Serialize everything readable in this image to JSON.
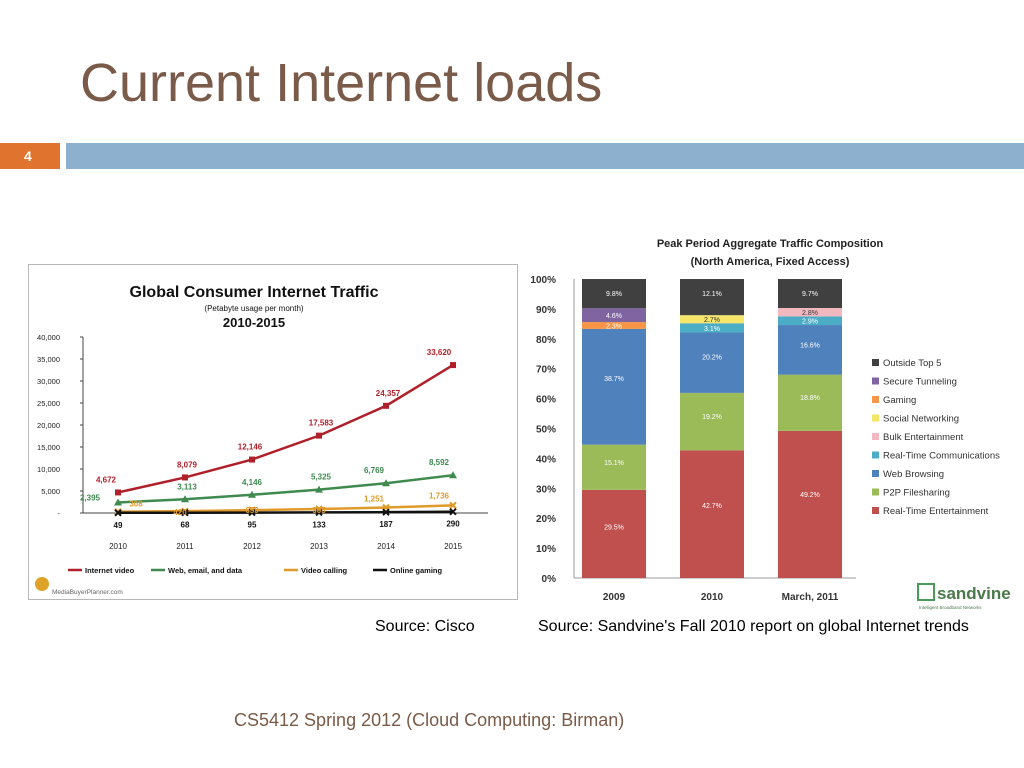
{
  "slide": {
    "title": "Current Internet loads",
    "number": "4",
    "source_left": "Source: Cisco",
    "source_right": "Source: Sandvine's Fall 2010 report on global Internet trends",
    "footer": "CS5412 Spring 2012 (Cloud Computing: Birman)",
    "colors": {
      "title": "#7a5a48",
      "accent_orange": "#e0742e",
      "bar_blue": "#8eb0cf"
    }
  },
  "chart_data": [
    {
      "type": "line",
      "title": "Global Consumer Internet Traffic",
      "subtitle": "(Petabyte usage per month)",
      "subtitle2": "2010-2015",
      "x": [
        "2010",
        "2011",
        "2012",
        "2013",
        "2014",
        "2015"
      ],
      "ylim": [
        0,
        40000
      ],
      "y_ticks": [
        "-",
        "5,000",
        "10,000",
        "15,000",
        "20,000",
        "25,000",
        "30,000",
        "35,000",
        "40,000"
      ],
      "series": [
        {
          "name": "Internet video",
          "color": "#b0202a",
          "marker": "square",
          "values": [
            4672,
            8079,
            12146,
            17583,
            24357,
            33620
          ],
          "labels": [
            "4,672",
            "8,079",
            "12,146",
            "17,583",
            "24,357",
            "33,620"
          ]
        },
        {
          "name": "Web, email, and data",
          "color": "#3e8a4f",
          "marker": "triangle",
          "values": [
            2395,
            3113,
            4146,
            5325,
            6769,
            8592
          ],
          "labels": [
            "2,395",
            "3,113",
            "4,146",
            "5,325",
            "6,769",
            "8,592"
          ]
        },
        {
          "name": "Video calling",
          "color": "#e09a2a",
          "marker": "x",
          "values": [
            308,
            420,
            659,
            905,
            1251,
            1736
          ],
          "labels": [
            "308",
            "420",
            "659",
            "905",
            "1,251",
            "1,736"
          ]
        },
        {
          "name": "Online gaming",
          "color": "#111111",
          "marker": "x",
          "values": [
            49,
            68,
            95,
            133,
            187,
            290
          ],
          "labels": [
            "49",
            "68",
            "95",
            "133",
            "187",
            "290"
          ]
        }
      ],
      "watermark": "MediaBuyerPlanner.com",
      "source_note": "Source: Cisco",
      "grid": false,
      "legend_position": "bottom"
    },
    {
      "type": "bar",
      "stacked": true,
      "title": "Peak Period Aggregate Traffic Composition",
      "subtitle": "(North America, Fixed Access)",
      "categories": [
        "2009",
        "2010",
        "March, 2011"
      ],
      "ylim": [
        0,
        100
      ],
      "y_ticks": [
        "0%",
        "10%",
        "20%",
        "30%",
        "40%",
        "50%",
        "60%",
        "70%",
        "80%",
        "90%",
        "100%"
      ],
      "series": [
        {
          "name": "Real-Time Entertainment",
          "color": "#c0504d",
          "values": [
            29.5,
            42.7,
            49.2
          ],
          "labels": [
            "29.5%",
            "42.7%",
            "49.2%"
          ]
        },
        {
          "name": "P2P Filesharing",
          "color": "#9bbb59",
          "values": [
            15.1,
            19.2,
            18.8
          ],
          "labels": [
            "15.1%",
            "19.2%",
            "18.8%"
          ]
        },
        {
          "name": "Web Browsing",
          "color": "#4f81bd",
          "values": [
            38.7,
            20.2,
            16.6
          ],
          "labels": [
            "38.7%",
            "20.2%",
            "16.6%"
          ]
        },
        {
          "name": "Real-Time Communications",
          "color": "#4bacc6",
          "values": [
            0,
            3.1,
            2.9
          ],
          "labels": [
            "",
            "3.1%",
            "2.9%"
          ]
        },
        {
          "name": "Bulk Entertainment",
          "color": "#f2b8c0",
          "values": [
            0,
            0,
            2.8
          ],
          "labels": [
            "",
            "",
            "2.8%"
          ]
        },
        {
          "name": "Social Networking",
          "color": "#f5e66a",
          "values": [
            0,
            2.7,
            0
          ],
          "labels": [
            "",
            "2.7%",
            ""
          ]
        },
        {
          "name": "Gaming",
          "color": "#f79646",
          "values": [
            2.3,
            0,
            0
          ],
          "labels": [
            "2.3%",
            "",
            ""
          ]
        },
        {
          "name": "Secure Tunneling",
          "color": "#8064a2",
          "values": [
            4.6,
            0,
            0
          ],
          "labels": [
            "4.6%",
            "",
            ""
          ]
        },
        {
          "name": "Outside Top 5",
          "color": "#404040",
          "values": [
            9.8,
            12.1,
            9.7
          ],
          "labels": [
            "9.8%",
            "12.1%",
            "9.7%"
          ]
        }
      ],
      "legend_order": [
        "Outside Top 5",
        "Secure Tunneling",
        "Gaming",
        "Social Networking",
        "Bulk Entertainment",
        "Real-Time Communications",
        "Web Browsing",
        "P2P Filesharing",
        "Real-Time Entertainment"
      ],
      "legend_position": "right",
      "logo_text": "sandvine",
      "logo_tagline": "Intelligent Broadband Networks"
    }
  ]
}
